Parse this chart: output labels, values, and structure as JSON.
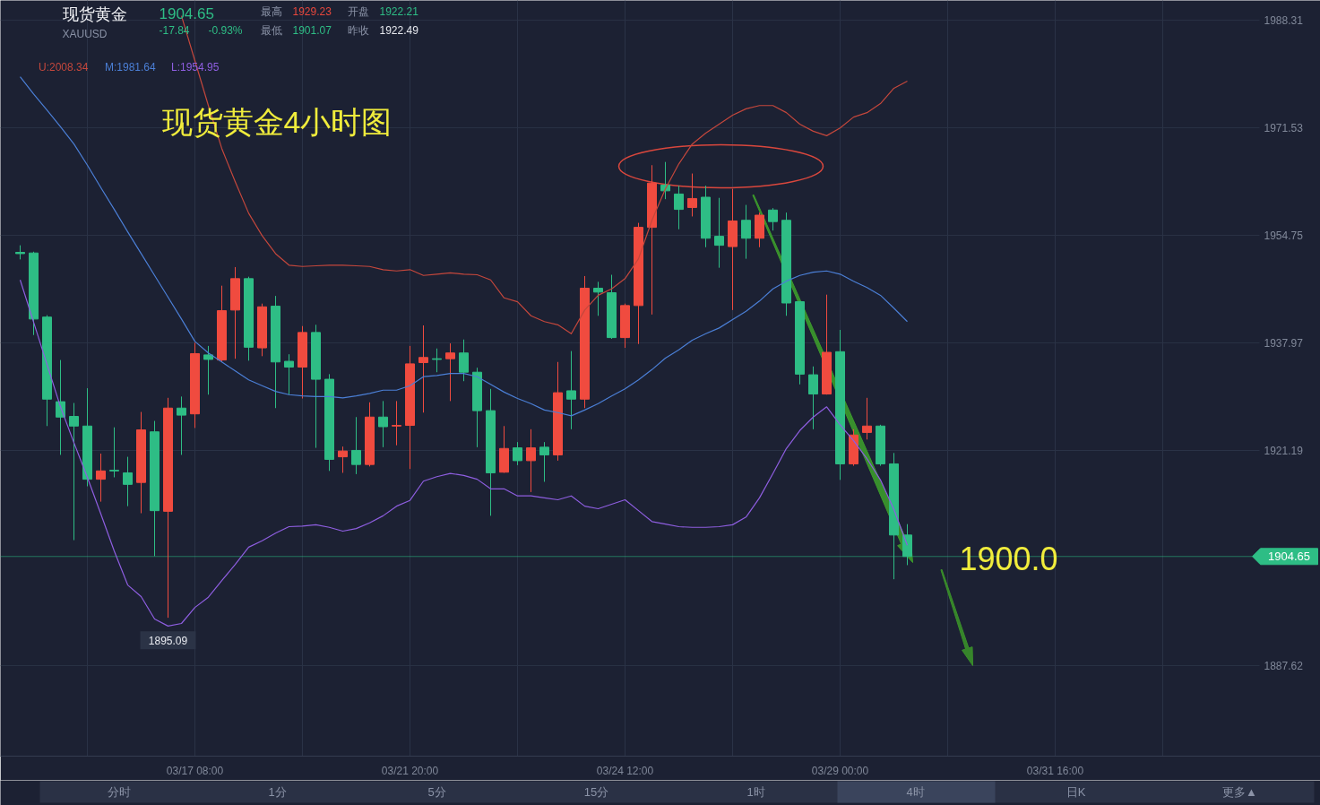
{
  "chart_data": {
    "type": "candlestick",
    "title": "现货黄金",
    "subtitle": "XAUUSD",
    "categories": [
      null,
      null,
      null,
      null,
      null,
      null,
      null,
      null,
      null,
      null,
      null,
      null,
      null,
      "03/17 08:00",
      null,
      null,
      null,
      null,
      null,
      null,
      null,
      null,
      null,
      null,
      null,
      null,
      null,
      null,
      null,
      "03/21 20:00",
      null,
      null,
      null,
      null,
      null,
      null,
      null,
      null,
      null,
      null,
      null,
      null,
      null,
      null,
      null,
      "03/24 12:00",
      null,
      null,
      null,
      null,
      null,
      null,
      null,
      null,
      null,
      null,
      null,
      null,
      null,
      null,
      null,
      "03/29 00:00",
      null,
      null,
      null,
      null,
      null,
      null,
      null,
      null,
      null,
      null,
      null,
      null,
      null,
      null,
      null,
      "03/31 16:00"
    ],
    "ohlc": [
      [
        1952.1,
        1953.2,
        1951.0,
        1951.9
      ],
      [
        1952.0,
        1952.2,
        1939.2,
        1941.7
      ],
      [
        1942.0,
        1942.3,
        1925.0,
        1929.2
      ],
      [
        1928.8,
        1935.3,
        1920.5,
        1926.4
      ],
      [
        1926.5,
        1928.6,
        1907.2,
        1925.0
      ],
      [
        1925.0,
        1930.9,
        1915.6,
        1916.7
      ],
      [
        1916.7,
        1920.7,
        1913.2,
        1918.0
      ],
      [
        1918.1,
        1924.8,
        1917.0,
        1918.0
      ],
      [
        1917.7,
        1920.2,
        1912.5,
        1915.9
      ],
      [
        1916.2,
        1927.2,
        1911.4,
        1924.4
      ],
      [
        1924.1,
        1925.8,
        1904.7,
        1911.8
      ],
      [
        1911.7,
        1929.4,
        1895.09,
        1927.8
      ],
      [
        1927.8,
        1929.6,
        1920.5,
        1926.7
      ],
      [
        1926.9,
        1938.0,
        1924.7,
        1936.3
      ],
      [
        1936.1,
        1937.5,
        1929.9,
        1935.4
      ],
      [
        1935.3,
        1946.9,
        1935.0,
        1943.0
      ],
      [
        1943.1,
        1949.8,
        1935.5,
        1948.0
      ],
      [
        1948.0,
        1948.3,
        1935.2,
        1937.3
      ],
      [
        1937.2,
        1944.1,
        1935.9,
        1943.6
      ],
      [
        1943.7,
        1945.3,
        1927.8,
        1935.0
      ],
      [
        1935.1,
        1936.2,
        1929.9,
        1934.2
      ],
      [
        1934.2,
        1940.6,
        1929.3,
        1939.6
      ],
      [
        1939.6,
        1940.8,
        1921.6,
        1932.3
      ],
      [
        1932.3,
        1933.1,
        1918.0,
        1919.8
      ],
      [
        1920.2,
        1921.8,
        1917.7,
        1921.1
      ],
      [
        1921.2,
        1926.4,
        1917.5,
        1919.0
      ],
      [
        1919.0,
        1928.7,
        1918.7,
        1926.4
      ],
      [
        1926.4,
        1928.9,
        1921.7,
        1924.9
      ],
      [
        1925.0,
        1928.9,
        1922.0,
        1925.1
      ],
      [
        1925.1,
        1937.5,
        1918.3,
        1934.7
      ],
      [
        1934.9,
        1940.7,
        1927.1,
        1935.7
      ],
      [
        1935.5,
        1937.1,
        1933.4,
        1935.4
      ],
      [
        1935.5,
        1937.9,
        1928.9,
        1936.4
      ],
      [
        1936.4,
        1938.5,
        1932.0,
        1933.4
      ],
      [
        1933.4,
        1934.1,
        1921.7,
        1927.4
      ],
      [
        1927.4,
        1930.8,
        1911.0,
        1917.7
      ],
      [
        1917.8,
        1925.0,
        1917.7,
        1921.5
      ],
      [
        1921.6,
        1922.5,
        1918.9,
        1919.6
      ],
      [
        1919.6,
        1924.5,
        1914.7,
        1921.6
      ],
      [
        1921.7,
        1922.5,
        1916.3,
        1920.5
      ],
      [
        1920.5,
        1935.0,
        1919.6,
        1930.2
      ],
      [
        1930.5,
        1936.7,
        1924.5,
        1929.2
      ],
      [
        1929.2,
        1948.4,
        1927.8,
        1946.5
      ],
      [
        1946.5,
        1947.5,
        1942.2,
        1945.9
      ],
      [
        1945.8,
        1948.6,
        1938.6,
        1938.8
      ],
      [
        1938.8,
        1944.1,
        1937.2,
        1943.8
      ],
      [
        1943.8,
        1956.7,
        1937.8,
        1956.0
      ],
      [
        1956.0,
        1965.7,
        1942.4,
        1962.9
      ],
      [
        1962.6,
        1966.2,
        1960.4,
        1961.7
      ],
      [
        1961.2,
        1962.5,
        1955.7,
        1958.8
      ],
      [
        1959.1,
        1964.4,
        1957.7,
        1960.5
      ],
      [
        1960.7,
        1962.5,
        1952.9,
        1954.3
      ],
      [
        1954.6,
        1960.6,
        1949.7,
        1953.2
      ],
      [
        1953.0,
        1962.0,
        1943.1,
        1957.0
      ],
      [
        1957.1,
        1959.5,
        1951.1,
        1954.3
      ],
      [
        1954.3,
        1958.3,
        1952.9,
        1957.9
      ],
      [
        1958.7,
        1959.0,
        1955.5,
        1956.9
      ],
      [
        1957.1,
        1958.3,
        1942.2,
        1944.2
      ],
      [
        1944.4,
        1944.5,
        1931.5,
        1933.1
      ],
      [
        1933.0,
        1934.3,
        1924.5,
        1930.0
      ],
      [
        1930.0,
        1945.5,
        1929.9,
        1936.5
      ],
      [
        1936.6,
        1940.0,
        1916.6,
        1919.1
      ],
      [
        1919.1,
        1924.5,
        1918.8,
        1923.6
      ],
      [
        1924.0,
        1929.4,
        1922.9,
        1925.0
      ],
      [
        1925.0,
        1925.2,
        1918.8,
        1919.1
      ],
      [
        1919.1,
        1920.8,
        1901.1,
        1908.0
      ],
      [
        1908.0,
        1909.7,
        1903.3,
        1904.65
      ],
      null,
      null,
      null,
      null,
      null,
      null,
      null,
      null,
      null,
      null,
      null
    ],
    "colors": [
      "#2ebd85",
      "#2ebd85",
      "#2ebd85",
      "#2ebd85",
      "#2ebd85",
      "#2ebd85",
      "#f04b3f",
      "#2ebd85",
      "#2ebd85",
      "#f04b3f",
      "#2ebd85",
      "#f04b3f",
      "#2ebd85",
      "#f04b3f",
      "#2ebd85",
      "#f04b3f",
      "#f04b3f",
      "#2ebd85",
      "#f04b3f",
      "#2ebd85",
      "#2ebd85",
      "#f04b3f",
      "#2ebd85",
      "#2ebd85",
      "#f04b3f",
      "#2ebd85",
      "#f04b3f",
      "#2ebd85",
      "#f04b3f",
      "#f04b3f",
      "#f04b3f",
      "#2ebd85",
      "#f04b3f",
      "#2ebd85",
      "#2ebd85",
      "#2ebd85",
      "#f04b3f",
      "#2ebd85",
      "#f04b3f",
      "#2ebd85",
      "#f04b3f",
      "#2ebd85",
      "#f04b3f",
      "#2ebd85",
      "#2ebd85",
      "#f04b3f",
      "#f04b3f",
      "#f04b3f",
      "#2ebd85",
      "#2ebd85",
      "#f04b3f",
      "#2ebd85",
      "#2ebd85",
      "#f04b3f",
      "#2ebd85",
      "#f04b3f",
      "#2ebd85",
      "#2ebd85",
      "#2ebd85",
      "#2ebd85",
      "#f04b3f",
      "#2ebd85",
      "#f04b3f",
      "#f04b3f",
      "#2ebd85",
      "#2ebd85",
      "#2ebd85",
      null,
      null,
      null,
      null,
      null,
      null,
      null,
      null,
      null,
      null,
      null
    ],
    "series": [
      {
        "name": "U:2008.34",
        "type": "line",
        "color": "#c4473c",
        "values": [
          null,
          null,
          null,
          null,
          null,
          null,
          null,
          null,
          null,
          null,
          null,
          null,
          1989.0,
          1982.0,
          1975.0,
          1968.3,
          1963.1,
          1958.2,
          1954.7,
          1951.9,
          1950.1,
          1949.9,
          1950.0,
          1950.1,
          1950.1,
          1950.0,
          1949.9,
          1949.4,
          1949.2,
          1949.4,
          1948.5,
          1948.7,
          1948.9,
          1948.7,
          1948.6,
          1947.8,
          1945.0,
          1944.4,
          1942.2,
          1941.3,
          1940.8,
          1939.4,
          1943.1,
          1945.4,
          1946.4,
          1948.0,
          1951.1,
          1957.1,
          1962.0,
          1965.9,
          1969.0,
          1970.7,
          1972.1,
          1973.5,
          1974.5,
          1975.0,
          1975.0,
          1973.9,
          1972.1,
          1971.0,
          1970.3,
          1971.5,
          1973.2,
          1973.9,
          1975.3,
          1977.7,
          1978.8,
          null,
          null,
          null,
          null,
          null,
          null,
          null,
          null,
          null,
          null,
          null
        ]
      },
      {
        "name": "M:1981.64",
        "type": "line",
        "color": "#4b7fd6",
        "values": [
          1979.5,
          1976.8,
          1974.3,
          1971.7,
          1969.0,
          1965.7,
          1962.2,
          1958.8,
          1955.3,
          1951.9,
          1948.5,
          1945.1,
          1941.7,
          1938.2,
          1936.4,
          1935.0,
          1933.6,
          1932.2,
          1931.3,
          1930.4,
          1929.9,
          1929.7,
          1929.6,
          1929.6,
          1929.4,
          1929.7,
          1930.1,
          1930.6,
          1930.6,
          1931.3,
          1932.7,
          1932.9,
          1933.2,
          1933.2,
          1932.7,
          1931.5,
          1930.3,
          1929.3,
          1928.5,
          1927.5,
          1927.1,
          1926.6,
          1927.5,
          1928.5,
          1929.7,
          1930.8,
          1932.2,
          1933.8,
          1935.6,
          1936.9,
          1938.4,
          1939.4,
          1940.3,
          1941.6,
          1942.9,
          1944.5,
          1946.4,
          1947.6,
          1948.5,
          1949.0,
          1949.2,
          1948.7,
          1947.6,
          1946.6,
          1945.4,
          1943.4,
          1941.3,
          null,
          null,
          null,
          null,
          null,
          null,
          null,
          null,
          null,
          null,
          null
        ]
      },
      {
        "name": "L:1954.95",
        "type": "line",
        "color": "#8e5ee0",
        "values": [
          1947.8,
          1941.2,
          1934.6,
          1928.0,
          1922.4,
          1917.0,
          1911.3,
          1905.5,
          1900.2,
          1898.4,
          1894.9,
          1893.8,
          1894.2,
          1896.7,
          1898.3,
          1900.9,
          1903.4,
          1906.1,
          1907.1,
          1908.3,
          1909.3,
          1909.4,
          1909.6,
          1909.2,
          1908.6,
          1909.0,
          1909.9,
          1911.0,
          1912.5,
          1913.4,
          1916.4,
          1917.1,
          1917.6,
          1917.3,
          1916.7,
          1915.2,
          1915.2,
          1914.1,
          1914.1,
          1913.8,
          1913.5,
          1914.1,
          1912.5,
          1912.1,
          1912.8,
          1913.5,
          1911.8,
          1910.1,
          1909.7,
          1909.3,
          1909.2,
          1909.2,
          1909.3,
          1909.6,
          1910.8,
          1913.8,
          1917.6,
          1921.5,
          1924.3,
          1926.4,
          1928.0,
          1925.2,
          1922.7,
          1919.9,
          1916.6,
          1912.0,
          1906.4,
          null,
          null,
          null,
          null,
          null,
          null,
          null,
          null,
          null,
          null,
          null
        ]
      }
    ],
    "ylim": [
      1873.5,
      1991.4
    ],
    "yticks": [
      1887.62,
      1921.19,
      1937.97,
      1954.75,
      1971.53,
      1988.31
    ],
    "grid": true,
    "legend": "top left",
    "ref_lines": [
      {
        "axis": "y",
        "value": 1904.65,
        "color": "#2ebd85"
      }
    ],
    "annotations": [
      "1904.65",
      "-17.84",
      "-0.93%",
      "最高",
      "1929.23",
      "开盘",
      "1922.21",
      "最低",
      "1901.07",
      "昨收",
      "1922.49",
      "现货黄金4小时图",
      "1900.0",
      {
        "text": "1895.09",
        "y": 1895.09
      },
      "分时",
      "1分",
      "5分",
      "15分",
      "1时",
      "4时",
      "日K",
      "更多▲",
      "1904.65"
    ]
  }
}
